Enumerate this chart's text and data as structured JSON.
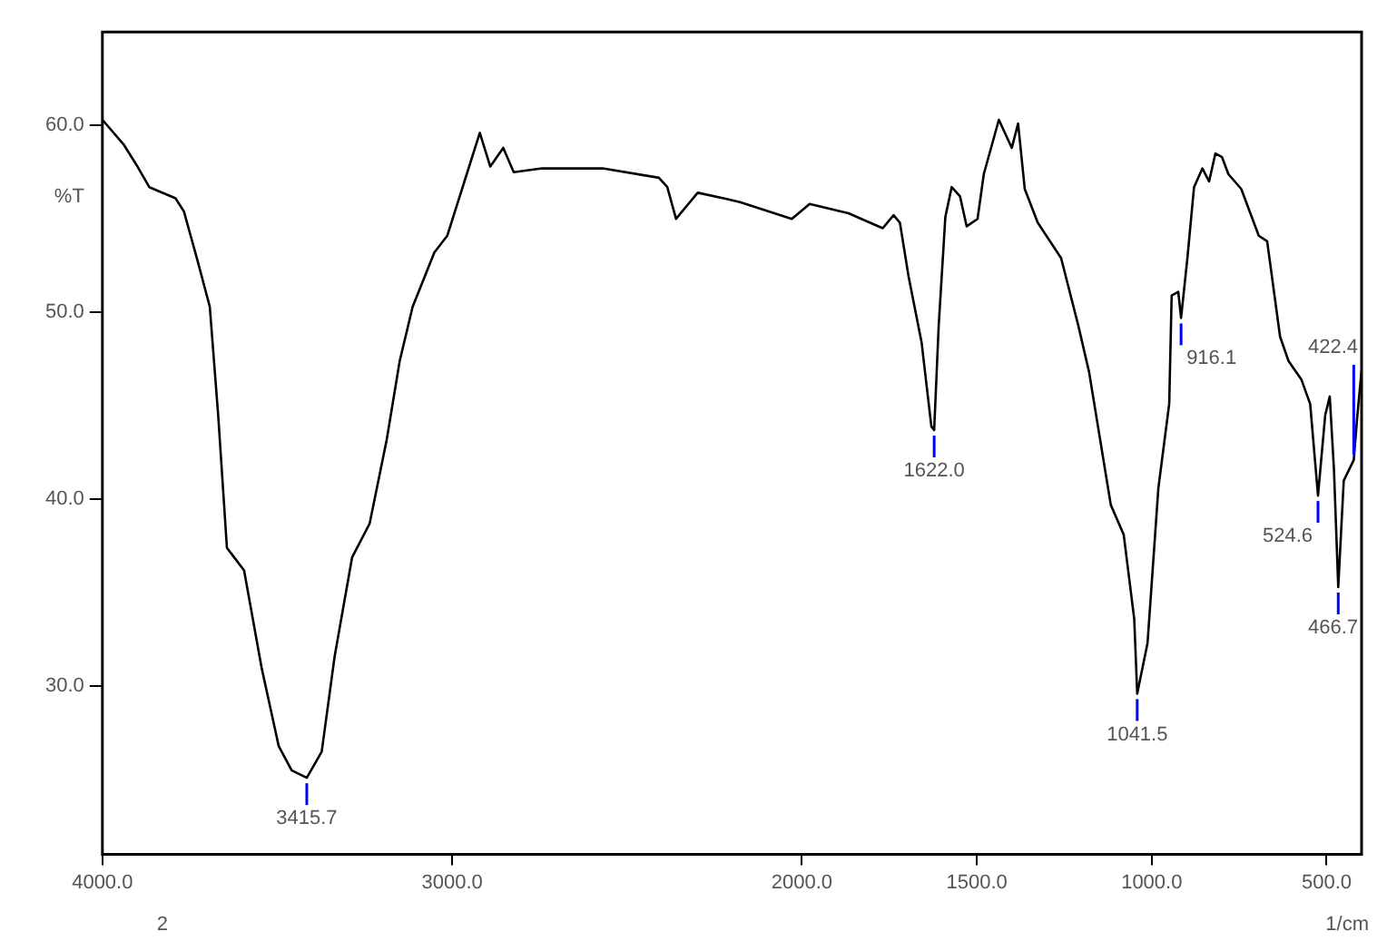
{
  "chart_data": {
    "type": "line",
    "xlabel": "1/cm",
    "ylabel": "%T",
    "xlim": [
      4000,
      400
    ],
    "ylim": [
      21,
      65
    ],
    "xticks": [
      {
        "value": 4000,
        "label": "4000.0"
      },
      {
        "value": 3000,
        "label": "3000.0"
      },
      {
        "value": 2000,
        "label": "2000.0"
      },
      {
        "value": 1500,
        "label": "1500.0"
      },
      {
        "value": 1000,
        "label": "1000.0"
      },
      {
        "value": 500,
        "label": "500.0"
      }
    ],
    "yticks": [
      {
        "value": 30,
        "label": "30.0"
      },
      {
        "value": 40,
        "label": "40.0"
      },
      {
        "value": 50,
        "label": "50.0"
      },
      {
        "value": 60,
        "label": "60.0"
      }
    ],
    "grid": false,
    "legend": false,
    "marker": "none",
    "line_style": "solid",
    "series": [
      {
        "color": "#000000",
        "x": [
          4000,
          3940,
          3903,
          3866,
          3791,
          3767,
          3730,
          3693,
          3669,
          3644,
          3595,
          3545,
          3496,
          3459,
          3415.7,
          3373,
          3336,
          3286,
          3236,
          3187,
          3150,
          3113,
          3051,
          3014,
          2965,
          2921,
          2891,
          2854,
          2824,
          2743,
          2570,
          2409,
          2385,
          2360,
          2298,
          2224,
          2177,
          2029,
          1978,
          1867,
          1830,
          1769,
          1738,
          1720,
          1695,
          1658,
          1640,
          1630,
          1622,
          1609,
          1590,
          1572,
          1548,
          1529,
          1498,
          1480,
          1437,
          1400,
          1382,
          1363,
          1326,
          1259,
          1210,
          1179,
          1117,
          1080,
          1050,
          1041.5,
          1012,
          981,
          950,
          943,
          924,
          916.1,
          898,
          879,
          855,
          836,
          818,
          799,
          781,
          744,
          694,
          670,
          633,
          609,
          572,
          547,
          524.6,
          504,
          491,
          479,
          466.7,
          451,
          422.4,
          412,
          400
        ],
        "values": [
          60.3,
          59.0,
          57.9,
          56.7,
          56.1,
          55.4,
          52.9,
          50.3,
          44.5,
          37.4,
          36.2,
          31.0,
          26.8,
          25.5,
          25.1,
          26.5,
          31.6,
          36.9,
          38.7,
          43.2,
          47.4,
          50.3,
          53.2,
          54.1,
          57.0,
          59.6,
          57.8,
          58.8,
          57.5,
          57.7,
          57.7,
          57.2,
          56.7,
          55.0,
          56.4,
          56.1,
          55.9,
          55.0,
          55.8,
          55.3,
          55.0,
          54.5,
          55.2,
          54.8,
          51.9,
          48.4,
          45.5,
          43.9,
          43.7,
          49.3,
          55.1,
          56.7,
          56.2,
          54.6,
          55.0,
          57.4,
          60.3,
          58.8,
          60.1,
          56.6,
          54.8,
          52.9,
          49.3,
          46.8,
          39.7,
          38.1,
          33.6,
          29.6,
          32.3,
          40.6,
          45.1,
          50.9,
          51.1,
          49.7,
          52.9,
          56.7,
          57.7,
          57.0,
          58.5,
          58.3,
          57.4,
          56.6,
          54.1,
          53.8,
          48.7,
          47.4,
          46.4,
          45.1,
          40.2,
          44.5,
          45.5,
          41.6,
          35.3,
          41.0,
          42.1,
          44.5,
          46.9
        ]
      }
    ],
    "annotations": [
      {
        "text": "3415.7",
        "x": 3415.7,
        "y": 25.1
      },
      {
        "text": "1622.0",
        "x": 1622,
        "y": 43.7
      },
      {
        "text": "1041.5",
        "x": 1041.5,
        "y": 29.6
      },
      {
        "text": "916.1",
        "x": 916.1,
        "y": 49.7
      },
      {
        "text": "524.6",
        "x": 524.6,
        "y": 40.2
      },
      {
        "text": "466.7",
        "x": 466.7,
        "y": 35.3
      },
      {
        "text": "422.4",
        "x": 422.4,
        "y": 42.1
      },
      "2"
    ]
  }
}
